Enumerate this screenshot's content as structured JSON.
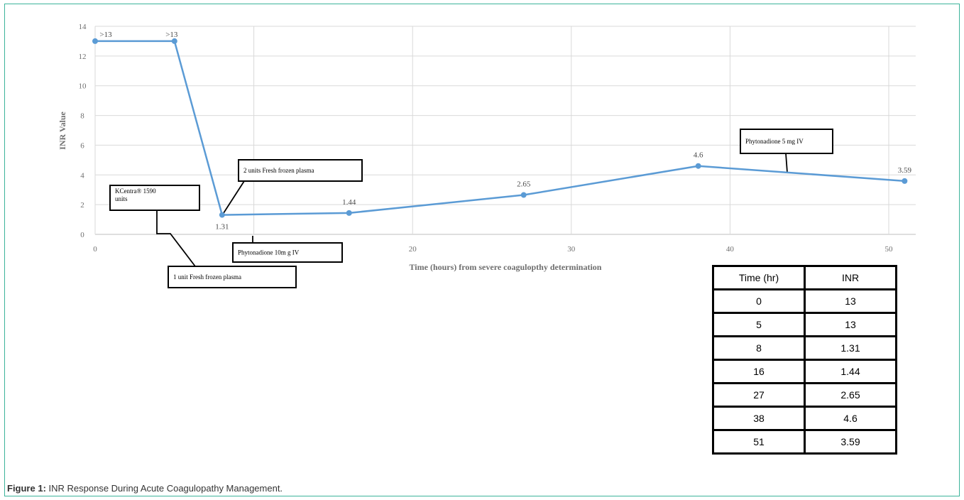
{
  "chart_data": {
    "type": "line",
    "xlabel": "Time (hours) from severe coagulopthy determination",
    "ylabel": "INR Value",
    "xlim": [
      0,
      52
    ],
    "ylim": [
      0,
      14
    ],
    "x_ticks": [
      0,
      10,
      20,
      30,
      40,
      50
    ],
    "y_ticks": [
      0,
      2,
      4,
      6,
      8,
      10,
      12,
      14
    ],
    "grid": true,
    "line_color": "#5b9bd5",
    "series": [
      {
        "x": [
          0,
          5,
          8,
          16,
          27,
          38,
          51
        ],
        "y": [
          13,
          13,
          1.31,
          1.44,
          2.65,
          4.6,
          3.59
        ],
        "labels": [
          ">13",
          ">13",
          "1.31",
          "1.44",
          "2.65",
          "4.6",
          "3.59"
        ]
      }
    ],
    "annotations": [
      {
        "text": [
          "KCentra® 1590",
          "units"
        ]
      },
      {
        "text": [
          "2 units Fresh frozen plasma"
        ]
      },
      {
        "text": [
          "Phytonadione  10m g IV"
        ]
      },
      {
        "text": [
          "1 unit Fresh frozen plasma"
        ]
      },
      {
        "text": [
          "Phytonadione 5 mg IV"
        ]
      }
    ]
  },
  "table": {
    "headers": [
      "Time (hr)",
      "INR"
    ],
    "rows": [
      [
        "0",
        "13"
      ],
      [
        "5",
        "13"
      ],
      [
        "8",
        "1.31"
      ],
      [
        "16",
        "1.44"
      ],
      [
        "27",
        "2.65"
      ],
      [
        "38",
        "4.6"
      ],
      [
        "51",
        "3.59"
      ]
    ]
  },
  "caption": {
    "label": "Figure 1:",
    "text": " INR Response During Acute Coagulopathy Management."
  }
}
